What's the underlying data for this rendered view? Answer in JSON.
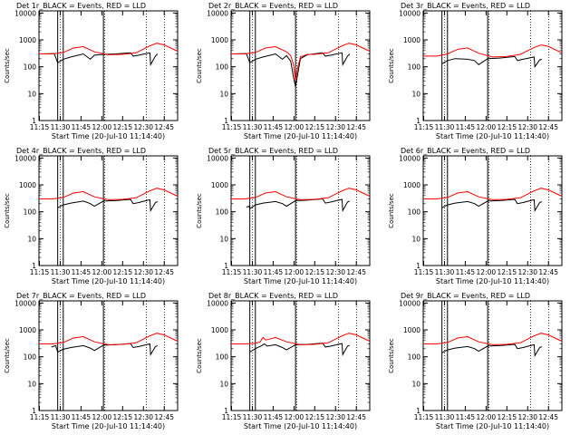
{
  "colors": {
    "events": "#000000",
    "lld": "#ff0000",
    "background": "#ffffff",
    "axes": "#000000"
  },
  "common": {
    "xlabel": "Start Time (20-Jul-10 11:14:40)",
    "ylabel": "Counts/sec",
    "x_ticks": [
      "11:15",
      "11:30",
      "11:45",
      "12:00",
      "12:15",
      "12:30",
      "12:45"
    ],
    "x_tick_minutes": [
      0.33,
      15.33,
      30.33,
      45.33,
      60.33,
      75.33,
      90.33
    ],
    "y_ticks": [
      "1",
      "10",
      "100",
      "1000",
      "10000"
    ],
    "y_tick_values": [
      1,
      10,
      100,
      1000,
      10000
    ],
    "xlim_minutes": [
      0,
      100
    ],
    "ylim": [
      1,
      12000
    ],
    "yscale": "log",
    "solid_vlines_minutes": [
      13.5,
      17.5,
      46.5
    ],
    "dotted_vlines_minutes": [
      15.5,
      47.5,
      77.5,
      90.5
    ]
  },
  "chart_data": [
    {
      "type": "line",
      "title": "Det 1r_BLACK = Events, RED = LLD",
      "title_suffix": "r",
      "xlabel": "Start Time (20-Jul-10 11:14:40)",
      "ylabel": "Counts/sec",
      "ylim": [
        1,
        12000
      ],
      "series": [
        {
          "name": "Events",
          "color": "#000000",
          "x": [
            0,
            11,
            13.5,
            17.5,
            23,
            32,
            37,
            40,
            46.5,
            55,
            66,
            68,
            72,
            76,
            80,
            80.5,
            84,
            85.5
          ],
          "y": [
            300,
            310,
            140,
            190,
            230,
            300,
            190,
            270,
            290,
            300,
            330,
            250,
            270,
            300,
            330,
            120,
            250,
            300
          ]
        },
        {
          "name": "LLD",
          "color": "#ff0000",
          "x": [
            0,
            10,
            17.5,
            25,
            32,
            40,
            50,
            60,
            70,
            80,
            85,
            90,
            100
          ],
          "y": [
            300,
            300,
            340,
            500,
            560,
            360,
            280,
            290,
            330,
            600,
            750,
            660,
            380
          ]
        }
      ]
    },
    {
      "type": "line",
      "title": "Det 2r_BLACK = Events, RED = LLD",
      "title_suffix": "r",
      "xlabel": "Start Time (20-Jul-10 11:14:40)",
      "ylabel": "Counts/sec",
      "ylim": [
        1,
        12000
      ],
      "series": [
        {
          "name": "Events",
          "color": "#000000",
          "x": [
            0,
            11,
            13.5,
            17.5,
            23,
            32,
            37,
            40,
            43,
            45,
            46.5,
            48,
            50,
            55,
            66,
            68,
            72,
            76,
            80,
            80.5,
            84,
            85.5
          ],
          "y": [
            300,
            310,
            140,
            190,
            230,
            300,
            190,
            260,
            160,
            40,
            18,
            50,
            200,
            280,
            330,
            250,
            270,
            300,
            330,
            120,
            250,
            300
          ]
        },
        {
          "name": "LLD",
          "color": "#ff0000",
          "x": [
            0,
            10,
            17.5,
            25,
            32,
            40,
            43,
            45,
            46.5,
            48,
            50,
            55,
            60,
            70,
            80,
            85,
            90,
            100
          ],
          "y": [
            300,
            300,
            340,
            500,
            560,
            360,
            260,
            120,
            30,
            90,
            230,
            290,
            290,
            330,
            600,
            750,
            660,
            380
          ]
        }
      ]
    },
    {
      "type": "line",
      "title": "Det 3r_BLACK = Events, RED = LLD",
      "title_suffix": "r",
      "xlabel": "Start Time (20-Jul-10 11:14:40)",
      "ylabel": "Counts/sec",
      "ylim": [
        1,
        12000
      ],
      "series": [
        {
          "name": "Events",
          "color": "#000000",
          "x": [
            13.5,
            17.5,
            23,
            32,
            37,
            40,
            46.5,
            55,
            66,
            68,
            72,
            76,
            80,
            80.5,
            84,
            85.5
          ],
          "y": [
            130,
            170,
            200,
            190,
            170,
            120,
            200,
            210,
            240,
            170,
            190,
            210,
            230,
            100,
            180,
            190
          ]
        },
        {
          "name": "LLD",
          "color": "#ff0000",
          "x": [
            0,
            10,
            17.5,
            25,
            32,
            40,
            50,
            60,
            70,
            80,
            85,
            90,
            100
          ],
          "y": [
            250,
            250,
            300,
            450,
            500,
            320,
            230,
            240,
            290,
            520,
            650,
            580,
            330
          ]
        }
      ]
    },
    {
      "type": "line",
      "title": "Det 4r_BLACK = Events, RED = LLD",
      "title_suffix": "r",
      "xlabel": "Start Time (20-Jul-10 11:14:40)",
      "ylabel": "Counts/sec",
      "ylim": [
        1,
        12000
      ],
      "series": [
        {
          "name": "Events",
          "color": "#000000",
          "x": [
            13.5,
            17.5,
            23,
            32,
            37,
            40,
            46.5,
            55,
            66,
            68,
            72,
            76,
            80,
            80.5,
            84,
            85.5
          ],
          "y": [
            140,
            180,
            210,
            250,
            200,
            160,
            250,
            260,
            290,
            200,
            220,
            250,
            280,
            110,
            220,
            240
          ]
        },
        {
          "name": "LLD",
          "color": "#ff0000",
          "x": [
            0,
            10,
            17.5,
            25,
            32,
            40,
            50,
            60,
            70,
            80,
            85,
            90,
            100
          ],
          "y": [
            300,
            300,
            340,
            500,
            560,
            360,
            280,
            290,
            330,
            600,
            750,
            660,
            380
          ]
        }
      ]
    },
    {
      "type": "line",
      "title": "Det 5r_BLACK = Events, RED = LLD",
      "title_suffix": "r",
      "xlabel": "Start Time (20-Jul-10 11:14:40)",
      "ylabel": "Counts/sec",
      "ylim": [
        1,
        12000
      ],
      "series": [
        {
          "name": "Events",
          "color": "#000000",
          "x": [
            11,
            13,
            13.5,
            17.5,
            23,
            32,
            37,
            40,
            46.5,
            55,
            66,
            68,
            72,
            76,
            80,
            80.5,
            84,
            85.5
          ],
          "y": [
            150,
            160,
            130,
            180,
            210,
            240,
            200,
            160,
            260,
            270,
            300,
            210,
            230,
            260,
            290,
            110,
            230,
            250
          ]
        },
        {
          "name": "LLD",
          "color": "#ff0000",
          "x": [
            0,
            10,
            17.5,
            25,
            32,
            40,
            50,
            60,
            70,
            80,
            85,
            90,
            100
          ],
          "y": [
            300,
            300,
            340,
            500,
            560,
            360,
            280,
            290,
            330,
            600,
            750,
            660,
            380
          ]
        }
      ]
    },
    {
      "type": "line",
      "title": "Det 6r_BLACK = Events, RED = LLD",
      "title_suffix": "r",
      "xlabel": "Start Time (20-Jul-10 11:14:40)",
      "ylabel": "Counts/sec",
      "ylim": [
        1,
        12000
      ],
      "series": [
        {
          "name": "Events",
          "color": "#000000",
          "x": [
            13.5,
            17.5,
            23,
            32,
            37,
            40,
            46.5,
            55,
            66,
            68,
            72,
            76,
            80,
            80.5,
            84,
            85.5
          ],
          "y": [
            140,
            180,
            210,
            240,
            200,
            160,
            250,
            260,
            290,
            200,
            220,
            250,
            280,
            110,
            220,
            240
          ]
        },
        {
          "name": "LLD",
          "color": "#ff0000",
          "x": [
            0,
            10,
            17.5,
            25,
            32,
            40,
            50,
            60,
            70,
            80,
            85,
            90,
            100
          ],
          "y": [
            300,
            300,
            340,
            500,
            560,
            360,
            280,
            290,
            330,
            600,
            750,
            660,
            380
          ]
        }
      ]
    },
    {
      "type": "line",
      "title": "Det 7r_BLACK = Events, RED = LLD",
      "title_suffix": "r",
      "xlabel": "Start Time (20-Jul-10 11:14:40)",
      "ylabel": "Counts/sec",
      "ylim": [
        1,
        12000
      ],
      "series": [
        {
          "name": "Events",
          "color": "#000000",
          "x": [
            9,
            12,
            13.5,
            17.5,
            23,
            32,
            37,
            40,
            46.5,
            55,
            66,
            68,
            72,
            76,
            80,
            80.5,
            84,
            85.5
          ],
          "y": [
            230,
            260,
            150,
            190,
            220,
            260,
            210,
            170,
            270,
            280,
            310,
            220,
            240,
            270,
            300,
            120,
            240,
            260
          ]
        },
        {
          "name": "LLD",
          "color": "#ff0000",
          "x": [
            0,
            10,
            17.5,
            25,
            32,
            40,
            50,
            60,
            70,
            80,
            85,
            90,
            100
          ],
          "y": [
            300,
            300,
            340,
            500,
            560,
            360,
            280,
            290,
            330,
            600,
            750,
            660,
            380
          ]
        }
      ]
    },
    {
      "type": "line",
      "title": "Det 8r_BLACK = Events, RED = LLD",
      "title_suffix": "r",
      "xlabel": "Start Time (20-Jul-10 11:14:40)",
      "ylabel": "Counts/sec",
      "ylim": [
        1,
        12000
      ],
      "series": [
        {
          "name": "Events",
          "color": "#000000",
          "x": [
            13.5,
            17.5,
            22,
            24,
            26,
            32,
            37,
            40,
            46.5,
            55,
            66,
            68,
            72,
            76,
            80,
            80.5,
            84,
            85.5
          ],
          "y": [
            150,
            200,
            260,
            300,
            250,
            280,
            220,
            180,
            280,
            290,
            320,
            230,
            250,
            280,
            310,
            120,
            250,
            270
          ]
        },
        {
          "name": "LLD",
          "color": "#ff0000",
          "x": [
            0,
            10,
            17.5,
            21,
            23,
            25,
            32,
            40,
            50,
            60,
            70,
            80,
            85,
            90,
            100
          ],
          "y": [
            300,
            300,
            320,
            360,
            520,
            420,
            520,
            360,
            280,
            290,
            330,
            600,
            750,
            660,
            380
          ]
        }
      ]
    },
    {
      "type": "line",
      "title": "Det 9r_BLACK = Events, RED = LLD",
      "title_suffix": "r",
      "xlabel": "Start Time (20-Jul-10 11:14:40)",
      "ylabel": "Counts/sec",
      "ylim": [
        1,
        12000
      ],
      "series": [
        {
          "name": "Events",
          "color": "#000000",
          "x": [
            13.5,
            17.5,
            23,
            32,
            37,
            40,
            46.5,
            55,
            66,
            68,
            72,
            76,
            80,
            80.5,
            84,
            85.5
          ],
          "y": [
            140,
            180,
            210,
            240,
            200,
            160,
            250,
            260,
            290,
            200,
            220,
            250,
            280,
            110,
            220,
            240
          ]
        },
        {
          "name": "LLD",
          "color": "#ff0000",
          "x": [
            0,
            10,
            17.5,
            25,
            32,
            40,
            50,
            60,
            70,
            80,
            85,
            90,
            100
          ],
          "y": [
            300,
            300,
            340,
            500,
            560,
            360,
            280,
            290,
            330,
            600,
            750,
            660,
            380
          ]
        }
      ]
    }
  ]
}
